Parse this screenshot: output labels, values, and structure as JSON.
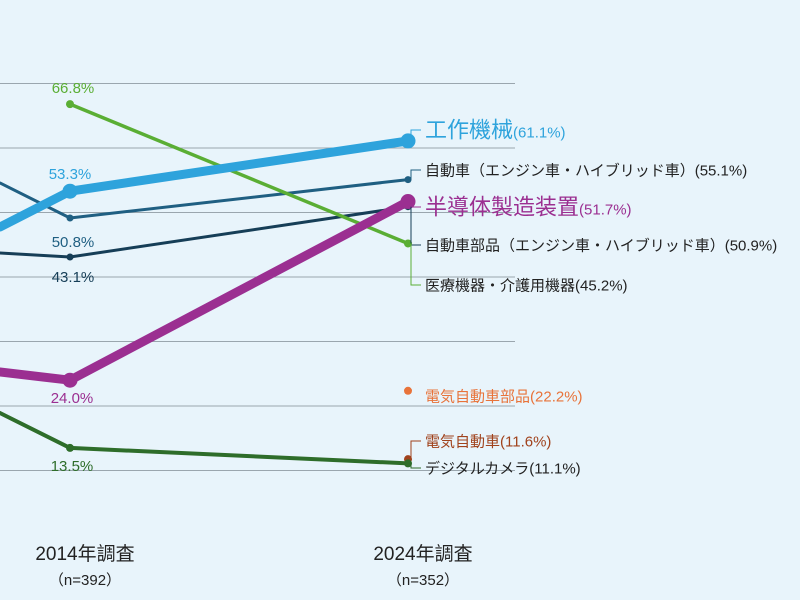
{
  "chart_data": {
    "type": "line",
    "x": [
      "2014年調査",
      "2024年調査"
    ],
    "x_sub": [
      "（n=392）",
      "（n=352）"
    ],
    "ylim": [
      0,
      75
    ],
    "y_grid_step": 10,
    "grid": true,
    "series": [
      {
        "name": "工作機械",
        "value_2014": 53.3,
        "value_2024": 61.1,
        "label_2014": "53.3%",
        "label_2024": "(61.1%)",
        "color": "#2ea3dc",
        "emphasis": "strong"
      },
      {
        "name": "自動車（エンジン車・ハイブリッド車）",
        "value_2014": 50.8,
        "value_2024": 55.1,
        "label_2014": "50.8%",
        "label_2024": "(55.1%)",
        "color": "#1f5f82",
        "emphasis": "normal"
      },
      {
        "name": "半導体製造装置",
        "value_2014": 24.0,
        "value_2024": 51.7,
        "label_2014": "24.0%",
        "label_2024": "(51.7%)",
        "color": "#9b2f91",
        "emphasis": "strong"
      },
      {
        "name": "自動車部品（エンジン車・ハイブリッド車）",
        "value_2014": 43.1,
        "value_2024": 50.9,
        "label_2014": "43.1%",
        "label_2024": "(50.9%)",
        "color": "#163e57",
        "emphasis": "normal"
      },
      {
        "name": "医療機器・介護用機器",
        "value_2014": 66.8,
        "value_2024": 45.2,
        "label_2014": "66.8%",
        "label_2024": "(45.2%)",
        "color": "#5aae34",
        "emphasis": "normal"
      },
      {
        "name": "電気自動車部品",
        "value_2024": 22.2,
        "label_2024": "(22.2%)",
        "color": "#e8733a",
        "emphasis": "point"
      },
      {
        "name": "電気自動車",
        "value_2024": 11.6,
        "label_2024": "(11.6%)",
        "color": "#a0421c",
        "emphasis": "point"
      },
      {
        "name": "デジタルカメラ",
        "value_2014": 13.5,
        "value_2024": 11.1,
        "label_2014": "13.5%",
        "label_2024": "(11.1%)",
        "color": "#2e6d2a",
        "emphasis": "normal"
      }
    ]
  }
}
